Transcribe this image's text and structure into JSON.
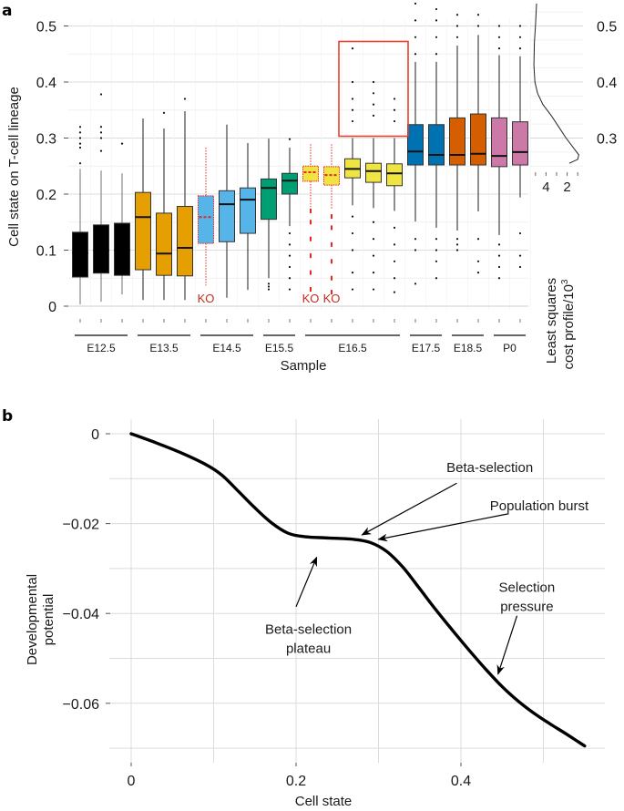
{
  "figure": {
    "panel_a_label": "a",
    "panel_b_label": "b"
  },
  "colors": {
    "E12.5": "#000000",
    "E13.5": "#E69F00",
    "E14.5": "#56B4E9",
    "E15.5": "#009E73",
    "E16.5": "#F0E442",
    "E17.5": "#0072B2",
    "E18.5": "#D55E00",
    "P0": "#CC79A7",
    "ko_line": "#E8251F",
    "highlight_box": "#E8402F",
    "ko_text": "#C8291E"
  },
  "chart_data": [
    {
      "type": "box",
      "panel": "a",
      "title": "",
      "xlabel": "Sample",
      "ylabel": "Cell state on T-cell lineage",
      "ylim": [
        0,
        0.53
      ],
      "yticks": [
        "0",
        "0.1",
        "0.2",
        "0.3",
        "0.4",
        "0.5"
      ],
      "ytick_values": [
        0,
        0.1,
        0.2,
        0.3,
        0.4,
        0.5
      ],
      "grid": true,
      "groups": [
        {
          "label": "E12.5",
          "start": 0,
          "end": 2
        },
        {
          "label": "E13.5",
          "start": 3,
          "end": 5
        },
        {
          "label": "E14.5",
          "start": 6,
          "end": 8
        },
        {
          "label": "E15.5",
          "start": 9,
          "end": 10
        },
        {
          "label": "E16.5",
          "start": 11,
          "end": 15
        },
        {
          "label": "E17.5",
          "start": 16,
          "end": 17
        },
        {
          "label": "E18.5",
          "start": 18,
          "end": 19
        },
        {
          "label": "P0",
          "start": 20,
          "end": 21
        }
      ],
      "ko_label": "KO",
      "boxes": [
        {
          "group": "E12.5",
          "ko": false,
          "lo": 0.003,
          "q1": 0.052,
          "median": 0.095,
          "q3": 0.132,
          "hi": 0.245,
          "outliers": [
            0.255,
            0.283,
            0.29,
            0.3,
            0.31,
            0.32
          ]
        },
        {
          "group": "E12.5",
          "ko": false,
          "lo": 0.008,
          "q1": 0.059,
          "median": 0.1,
          "q3": 0.145,
          "hi": 0.242,
          "outliers": [
            0.277,
            0.3,
            0.31,
            0.32,
            0.378
          ]
        },
        {
          "group": "E12.5",
          "ko": false,
          "lo": 0.021,
          "q1": 0.055,
          "median": 0.1,
          "q3": 0.148,
          "hi": 0.237,
          "outliers": [
            0.29
          ]
        },
        {
          "group": "E13.5",
          "ko": false,
          "lo": 0.011,
          "q1": 0.065,
          "median": 0.159,
          "q3": 0.203,
          "hi": 0.335,
          "outliers": []
        },
        {
          "group": "E13.5",
          "ko": false,
          "lo": 0.011,
          "q1": 0.055,
          "median": 0.094,
          "q3": 0.166,
          "hi": 0.317,
          "outliers": [
            0.345
          ]
        },
        {
          "group": "E13.5",
          "ko": false,
          "lo": 0.011,
          "q1": 0.054,
          "median": 0.104,
          "q3": 0.178,
          "hi": 0.348,
          "outliers": [
            0.37
          ]
        },
        {
          "group": "E14.5",
          "ko": true,
          "lo": 0.037,
          "q1": 0.112,
          "median": 0.159,
          "q3": 0.197,
          "hi": 0.283,
          "outliers": []
        },
        {
          "group": "E14.5",
          "ko": false,
          "lo": 0.015,
          "q1": 0.115,
          "median": 0.182,
          "q3": 0.206,
          "hi": 0.324,
          "outliers": []
        },
        {
          "group": "E14.5",
          "ko": false,
          "lo": 0.029,
          "q1": 0.13,
          "median": 0.19,
          "q3": 0.211,
          "hi": 0.291,
          "outliers": []
        },
        {
          "group": "E15.5",
          "ko": false,
          "lo": 0.05,
          "q1": 0.155,
          "median": 0.211,
          "q3": 0.227,
          "hi": 0.299,
          "outliers": [
            0.03,
            0.035,
            0.04
          ]
        },
        {
          "group": "E15.5",
          "ko": false,
          "lo": 0.143,
          "q1": 0.2,
          "median": 0.224,
          "q3": 0.237,
          "hi": 0.283,
          "outliers": [
            0.03,
            0.05,
            0.07,
            0.09,
            0.11,
            0.13,
            0.298
          ]
        },
        {
          "group": "E16.5",
          "ko": true,
          "lo": 0.177,
          "q1": 0.223,
          "median": 0.239,
          "q3": 0.25,
          "hi": 0.289,
          "outliers": [
            0.03,
            0.06,
            0.09,
            0.12,
            0.15,
            0.17
          ]
        },
        {
          "group": "E16.5",
          "ko": true,
          "lo": 0.174,
          "q1": 0.216,
          "median": 0.234,
          "q3": 0.249,
          "hi": 0.289,
          "outliers": [
            0.025,
            0.05,
            0.08,
            0.11,
            0.14,
            0.16
          ]
        },
        {
          "group": "E16.5",
          "ko": false,
          "lo": 0.18,
          "q1": 0.229,
          "median": 0.245,
          "q3": 0.263,
          "hi": 0.3,
          "outliers": [
            0.03,
            0.06,
            0.1,
            0.13,
            0.16,
            0.33,
            0.35,
            0.37,
            0.4,
            0.46
          ]
        },
        {
          "group": "E16.5",
          "ko": false,
          "lo": 0.175,
          "q1": 0.221,
          "median": 0.241,
          "q3": 0.255,
          "hi": 0.3,
          "outliers": [
            0.03,
            0.06,
            0.09,
            0.12,
            0.15,
            0.34,
            0.36,
            0.38,
            0.4
          ]
        },
        {
          "group": "E16.5",
          "ko": false,
          "lo": 0.17,
          "q1": 0.215,
          "median": 0.237,
          "q3": 0.254,
          "hi": 0.3,
          "outliers": [
            0.025,
            0.05,
            0.08,
            0.11,
            0.14,
            0.33,
            0.35,
            0.37
          ]
        },
        {
          "group": "E17.5",
          "ko": false,
          "lo": 0.151,
          "q1": 0.252,
          "median": 0.276,
          "q3": 0.324,
          "hi": 0.436,
          "outliers": [
            0.04,
            0.1,
            0.12,
            0.45,
            0.48,
            0.51,
            0.54
          ]
        },
        {
          "group": "E17.5",
          "ko": false,
          "lo": 0.14,
          "q1": 0.252,
          "median": 0.27,
          "q3": 0.324,
          "hi": 0.436,
          "outliers": [
            0.05,
            0.08,
            0.1,
            0.12,
            0.45,
            0.48,
            0.51,
            0.53
          ]
        },
        {
          "group": "E18.5",
          "ko": false,
          "lo": 0.135,
          "q1": 0.252,
          "median": 0.27,
          "q3": 0.336,
          "hi": 0.465,
          "outliers": [
            0.1,
            0.11,
            0.12,
            0.48,
            0.5,
            0.52
          ]
        },
        {
          "group": "E18.5",
          "ko": false,
          "lo": 0.169,
          "q1": 0.252,
          "median": 0.272,
          "q3": 0.343,
          "hi": 0.484,
          "outliers": [
            0.06,
            0.08,
            0.12,
            0.5,
            0.52
          ]
        },
        {
          "group": "P0",
          "ko": false,
          "lo": 0.127,
          "q1": 0.249,
          "median": 0.268,
          "q3": 0.336,
          "hi": 0.448,
          "outliers": [
            0.05,
            0.07,
            0.09,
            0.11,
            0.46,
            0.48,
            0.5
          ]
        },
        {
          "group": "P0",
          "ko": false,
          "lo": 0.194,
          "q1": 0.252,
          "median": 0.275,
          "q3": 0.329,
          "hi": 0.446,
          "outliers": [
            0.07,
            0.09,
            0.13,
            0.46,
            0.48,
            0.5
          ]
        }
      ],
      "highlight_region": {
        "x_from_box": 13,
        "x_to_box": 15,
        "y_range": [
          0.3,
          0.5
        ]
      },
      "cost_profile": {
        "type": "line",
        "xlabel_line1": "Least squares",
        "xlabel_line2": "cost profile/10",
        "xlabel_superscript": "3",
        "xticks": [
          "4",
          "2"
        ],
        "xtick_values": [
          4,
          2
        ],
        "xlim_reversed": [
          5.5,
          0.5
        ],
        "right_yticks": [
          "0.3",
          "0.4",
          "0.5"
        ],
        "right_ytick_values": [
          0.3,
          0.4,
          0.5
        ],
        "points": [
          {
            "y": 0.255,
            "cost": 1.8
          },
          {
            "y": 0.262,
            "cost": 1.0
          },
          {
            "y": 0.27,
            "cost": 0.9
          },
          {
            "y": 0.28,
            "cost": 1.3
          },
          {
            "y": 0.3,
            "cost": 2.1
          },
          {
            "y": 0.32,
            "cost": 2.8
          },
          {
            "y": 0.34,
            "cost": 3.5
          },
          {
            "y": 0.36,
            "cost": 4.3
          },
          {
            "y": 0.38,
            "cost": 4.8
          },
          {
            "y": 0.4,
            "cost": 5.05
          },
          {
            "y": 0.43,
            "cost": 5.15
          },
          {
            "y": 0.47,
            "cost": 5.1
          },
          {
            "y": 0.5,
            "cost": 5.0
          },
          {
            "y": 0.54,
            "cost": 4.9
          }
        ]
      }
    },
    {
      "type": "line",
      "panel": "b",
      "title": "",
      "xlabel": "Cell state",
      "ylabel_line1": "Developmental",
      "ylabel_line2": "potential",
      "xlim": [
        -0.01,
        0.57
      ],
      "ylim": [
        -0.072,
        0.0015
      ],
      "xticks": [
        "0",
        "0.2",
        "0.4"
      ],
      "xtick_values": [
        0,
        0.2,
        0.4
      ],
      "yticks": [
        "0",
        "−0.02",
        "−0.04",
        "−0.06"
      ],
      "ytick_values": [
        0,
        -0.02,
        -0.04,
        -0.06
      ],
      "grid": true,
      "series": [
        {
          "name": "Developmental potential",
          "points": [
            [
              0,
              0
            ],
            [
              0.03,
              -0.002
            ],
            [
              0.06,
              -0.0042
            ],
            [
              0.09,
              -0.0068
            ],
            [
              0.11,
              -0.0092
            ],
            [
              0.13,
              -0.0128
            ],
            [
              0.15,
              -0.0165
            ],
            [
              0.17,
              -0.0198
            ],
            [
              0.19,
              -0.0221
            ],
            [
              0.21,
              -0.0229
            ],
            [
              0.24,
              -0.0232
            ],
            [
              0.27,
              -0.0235
            ],
            [
              0.29,
              -0.0242
            ],
            [
              0.31,
              -0.0262
            ],
            [
              0.33,
              -0.0298
            ],
            [
              0.35,
              -0.0345
            ],
            [
              0.37,
              -0.0393
            ],
            [
              0.39,
              -0.0438
            ],
            [
              0.41,
              -0.0482
            ],
            [
              0.43,
              -0.0524
            ],
            [
              0.45,
              -0.0563
            ],
            [
              0.47,
              -0.0596
            ],
            [
              0.49,
              -0.0624
            ],
            [
              0.51,
              -0.0648
            ],
            [
              0.53,
              -0.0671
            ],
            [
              0.55,
              -0.0695
            ]
          ]
        }
      ],
      "annotations": [
        {
          "text_lines": [
            "Beta-selection"
          ],
          "text_at": [
            0.435,
            -0.0085
          ],
          "arrow_from": [
            0.395,
            -0.011
          ],
          "arrow_to": [
            0.28,
            -0.0225
          ]
        },
        {
          "text_lines": [
            "Population burst"
          ],
          "text_at": [
            0.495,
            -0.017
          ],
          "arrow_from": [
            0.458,
            -0.0178
          ],
          "arrow_to": [
            0.3,
            -0.0235
          ]
        },
        {
          "text_lines": [
            "Beta-selection",
            "plateau"
          ],
          "text_at": [
            0.215,
            -0.0445
          ],
          "arrow_from": [
            0.2,
            -0.0385
          ],
          "arrow_to": [
            0.225,
            -0.0275
          ]
        },
        {
          "text_lines": [
            "Selection",
            "pressure"
          ],
          "text_at": [
            0.48,
            -0.0352
          ],
          "arrow_from": [
            0.468,
            -0.0405
          ],
          "arrow_to": [
            0.445,
            -0.0535
          ]
        }
      ]
    }
  ]
}
